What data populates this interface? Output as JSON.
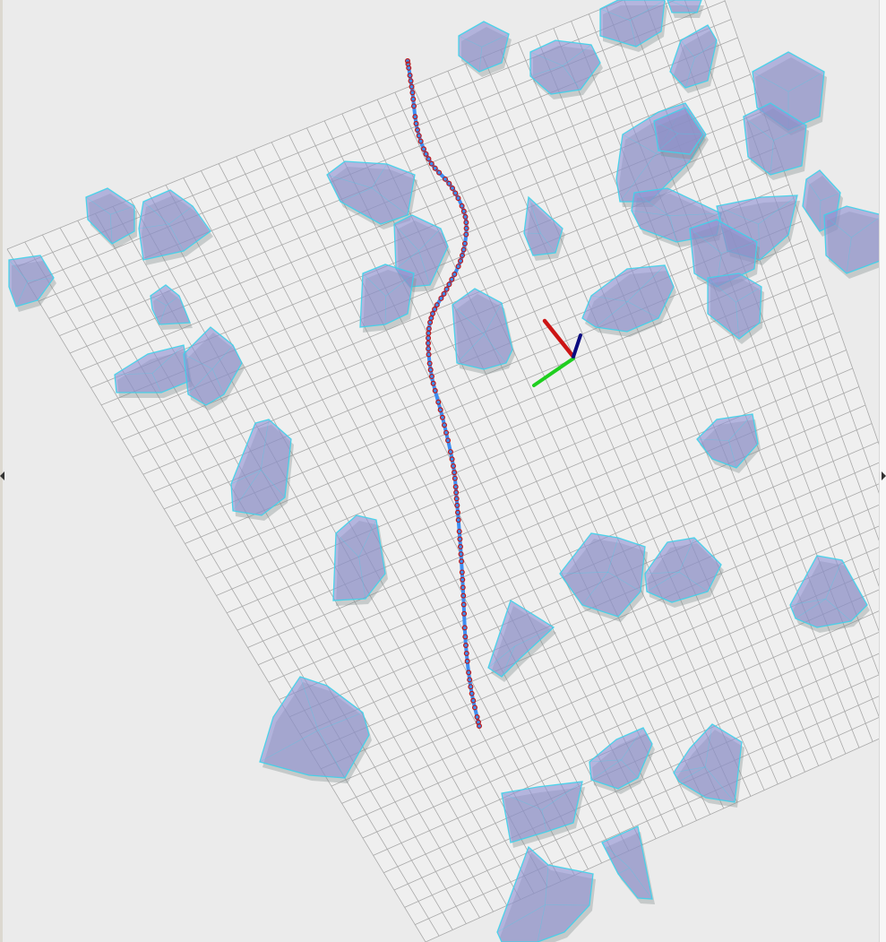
{
  "viewer": {
    "background_color": "#ebebeb",
    "grid": {
      "cells": 40,
      "line_color": "#a9a9a9",
      "fill_color": "#efefef"
    },
    "obstacles": {
      "fill_color": "#8f91d3",
      "edge_color": "#3ed3ea",
      "count": 52
    },
    "path": {
      "line_color": "#3d8ef2",
      "waypoint_color": "#c01818",
      "waypoint_count": 100
    },
    "axes": {
      "x_color": "#cc1515",
      "y_color": "#1fcf1f",
      "z_color": "#0b0b80"
    }
  },
  "panels": {
    "left_collapse_icon": "triangle-left-icon",
    "right_collapse_icon": "triangle-right-icon"
  }
}
